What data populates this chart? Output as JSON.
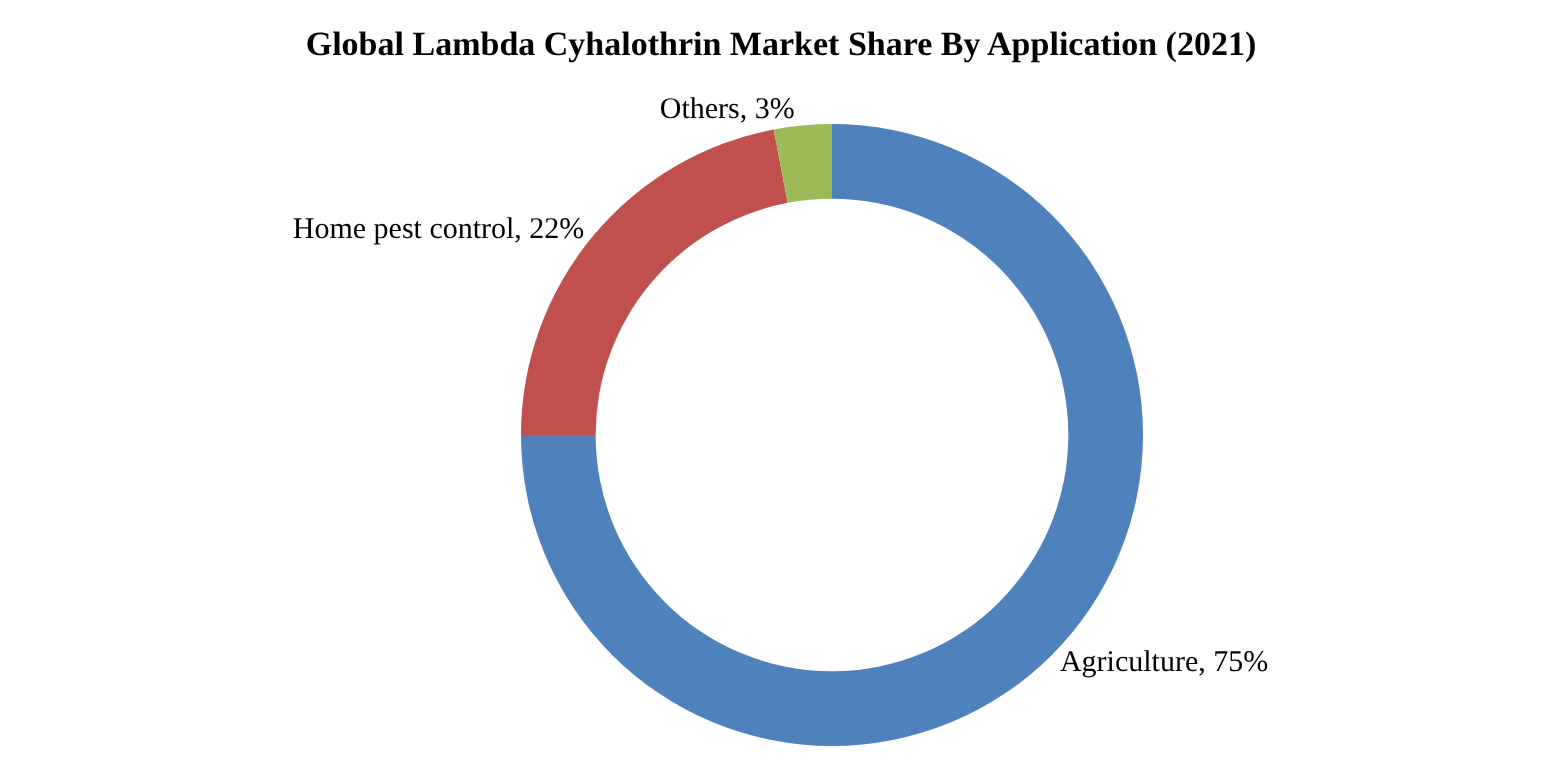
{
  "chart_data": {
    "type": "donut",
    "title": "Global Lambda Cyhalothrin Market Share By Application (2021)",
    "categories": [
      "Agriculture",
      "Home pest control",
      "Others"
    ],
    "values": [
      75,
      22,
      3
    ],
    "colors": [
      "#4f81bd",
      "#c0504d",
      "#9bbb59"
    ],
    "value_labels": [
      "75%",
      "22%",
      "3%"
    ],
    "legend": false
  }
}
